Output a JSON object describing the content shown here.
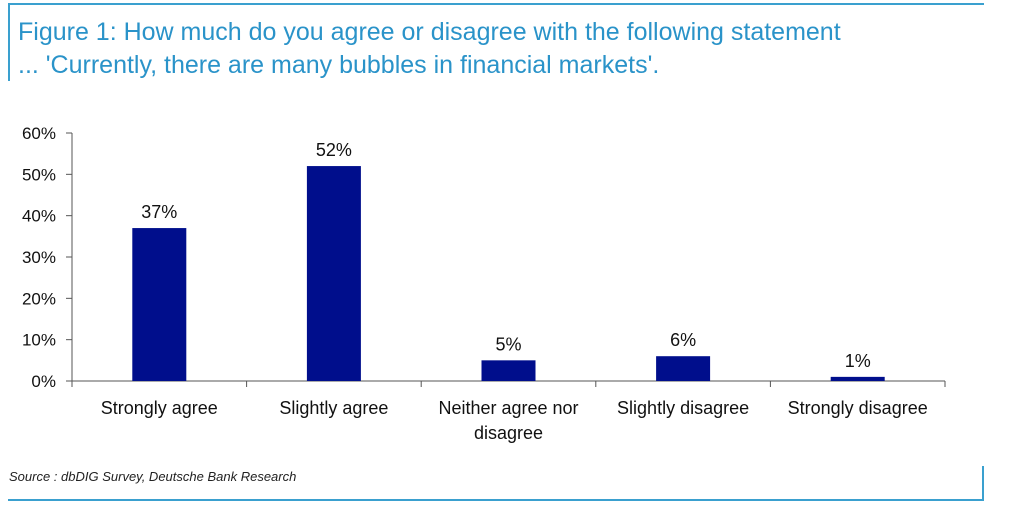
{
  "title_lines": [
    "Figure 1: How much do you agree or disagree with the following statement",
    "... 'Currently, there are many bubbles in financial markets'."
  ],
  "source": "Source : dbDIG Survey, Deutsche Bank Research",
  "chart_data": {
    "type": "bar",
    "title": "Figure 1: How much do you agree or disagree with the following statement ... 'Currently, there are many bubbles in financial markets'.",
    "categories": [
      [
        "Strongly agree"
      ],
      [
        "Slightly agree"
      ],
      [
        "Neither agree nor",
        "disagree"
      ],
      [
        "Slightly disagree"
      ],
      [
        "Strongly disagree"
      ]
    ],
    "values": [
      37,
      52,
      5,
      6,
      1
    ],
    "data_labels": [
      "37%",
      "52%",
      "5%",
      "6%",
      "1%"
    ],
    "y_ticks": [
      0,
      10,
      20,
      30,
      40,
      50,
      60
    ],
    "y_tick_labels": [
      "0%",
      "10%",
      "20%",
      "30%",
      "40%",
      "50%",
      "60%"
    ],
    "ylim": [
      0,
      60
    ],
    "xlabel": "",
    "ylabel": "",
    "grid": false,
    "bar_color": "#000e8c"
  }
}
